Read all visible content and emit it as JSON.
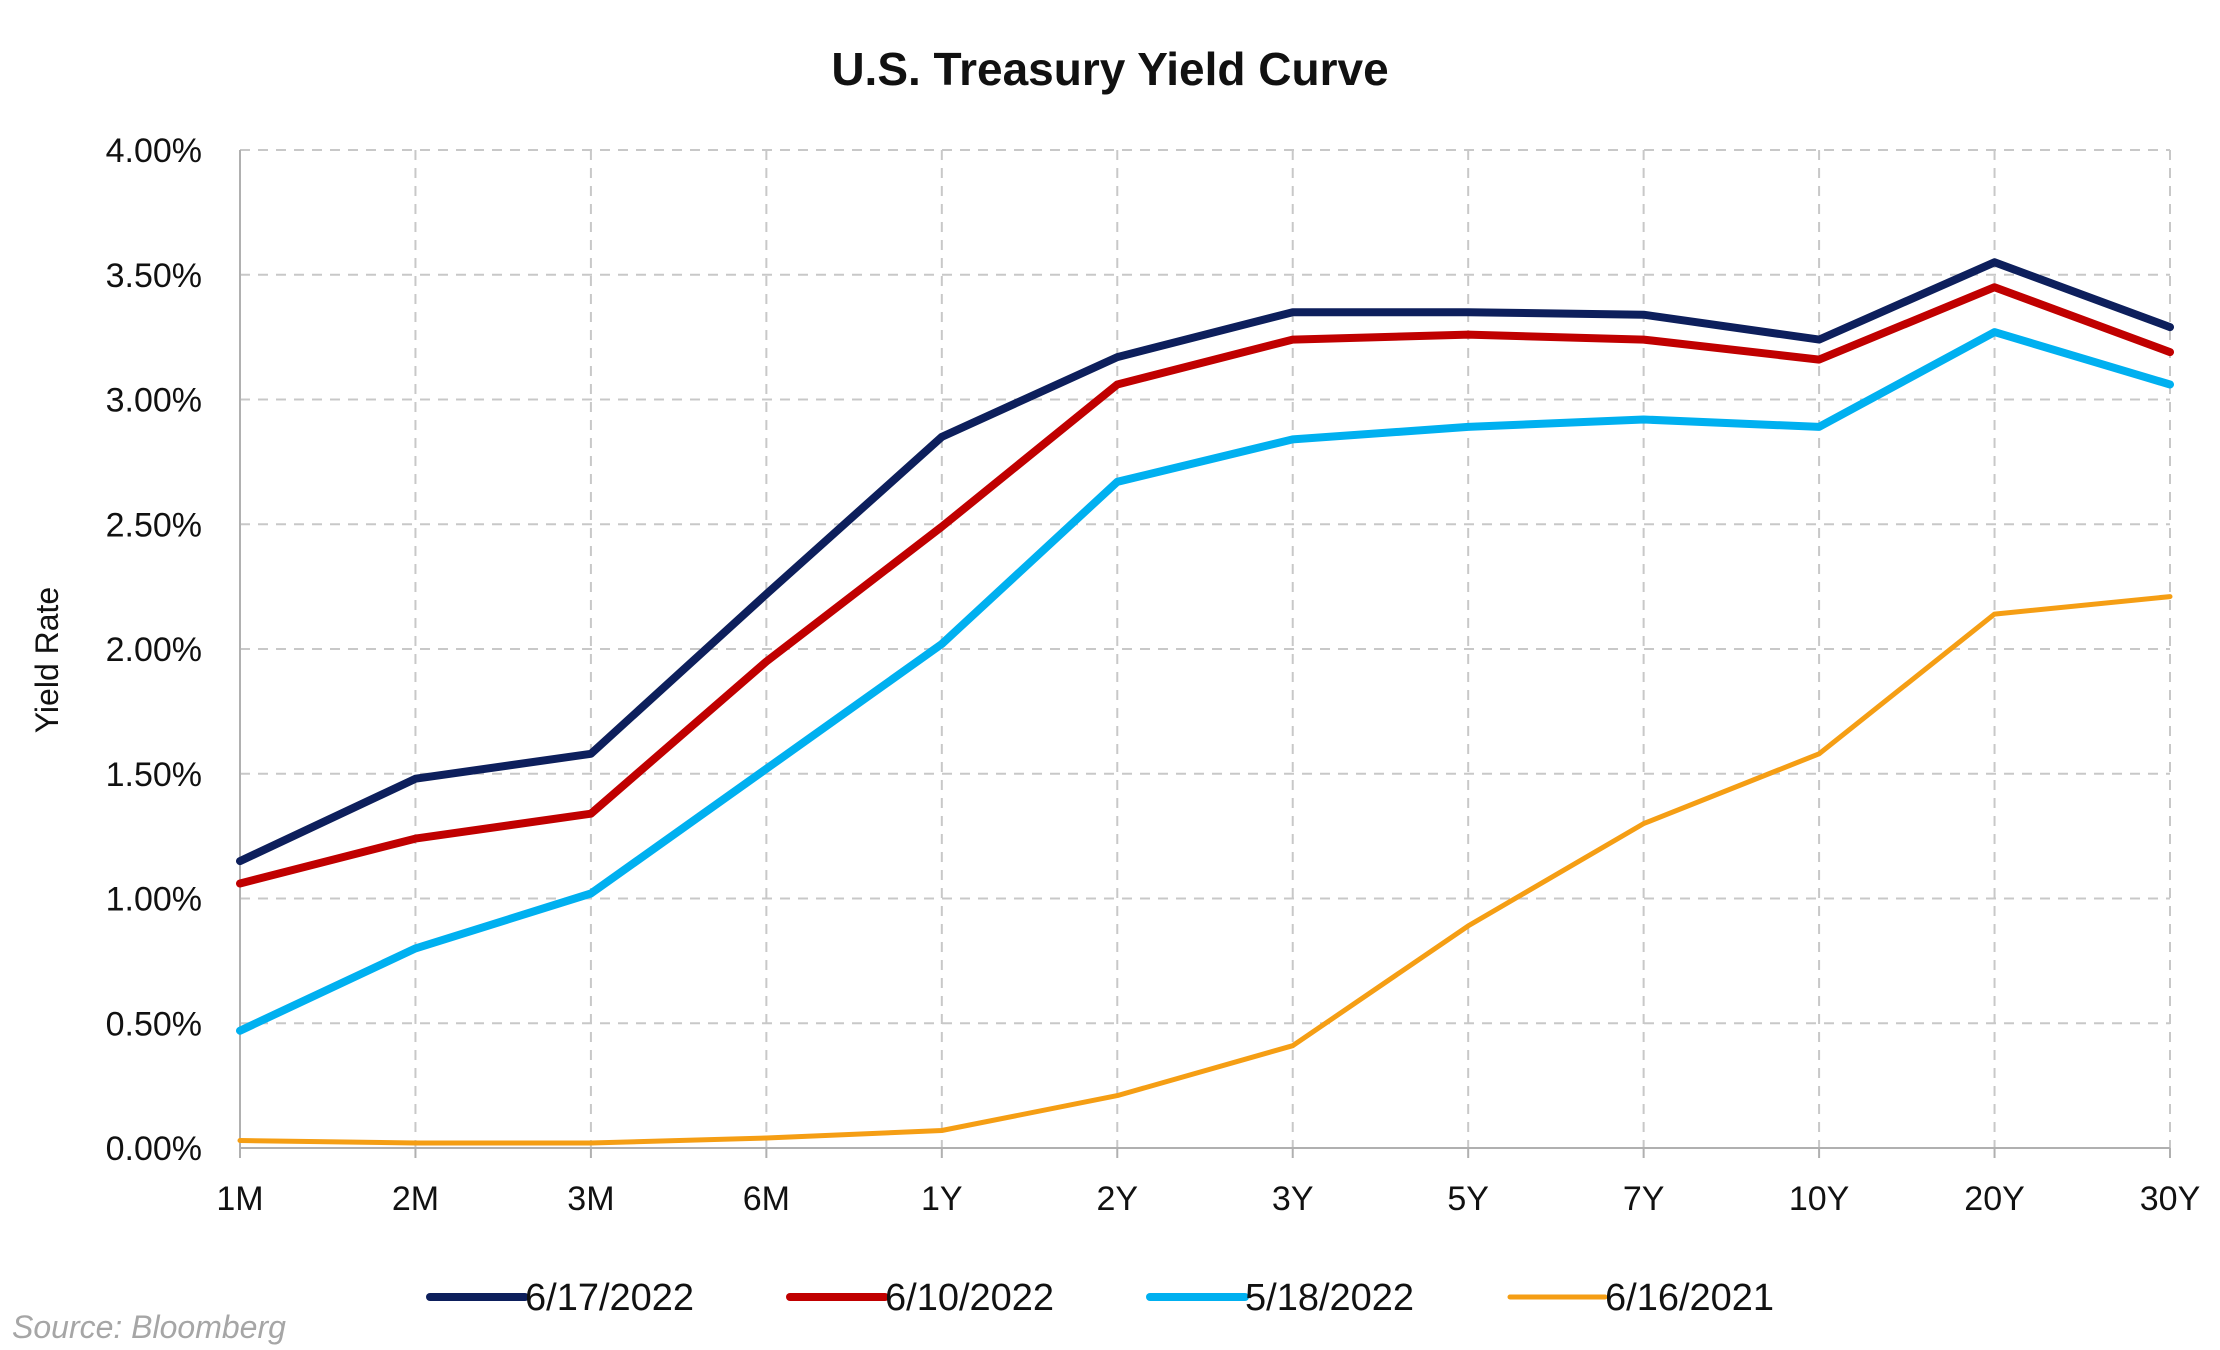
{
  "chart_data": {
    "type": "line",
    "title": "U.S. Treasury Yield Curve",
    "xlabel": "",
    "ylabel": "Yield Rate",
    "categories": [
      "1M",
      "2M",
      "3M",
      "6M",
      "1Y",
      "2Y",
      "3Y",
      "5Y",
      "7Y",
      "10Y",
      "20Y",
      "30Y"
    ],
    "ylim": [
      0,
      4
    ],
    "yticks": [
      0,
      0.5,
      1,
      1.5,
      2,
      2.5,
      3,
      3.5,
      4
    ],
    "ytick_labels": [
      "0.00%",
      "0.50%",
      "1.00%",
      "1.50%",
      "2.00%",
      "2.50%",
      "3.00%",
      "3.50%",
      "4.00%"
    ],
    "grid": true,
    "legend_position": "bottom",
    "series": [
      {
        "name": "6/17/2022",
        "color": "#0d1f5c",
        "values": [
          1.15,
          1.48,
          1.58,
          2.22,
          2.85,
          3.17,
          3.35,
          3.35,
          3.34,
          3.24,
          3.55,
          3.29
        ]
      },
      {
        "name": "6/10/2022",
        "color": "#c00000",
        "values": [
          1.06,
          1.24,
          1.34,
          1.95,
          2.49,
          3.06,
          3.24,
          3.26,
          3.24,
          3.16,
          3.45,
          3.19
        ]
      },
      {
        "name": "5/18/2022",
        "color": "#00b0f0",
        "values": [
          0.47,
          0.8,
          1.02,
          1.52,
          2.02,
          2.67,
          2.84,
          2.89,
          2.92,
          2.89,
          3.27,
          3.06
        ]
      },
      {
        "name": "6/16/2021",
        "color": "#f59e14",
        "values": [
          0.03,
          0.02,
          0.02,
          0.04,
          0.07,
          0.21,
          0.41,
          0.89,
          1.3,
          1.58,
          2.14,
          2.21
        ]
      }
    ],
    "source": "Source: Bloomberg"
  }
}
